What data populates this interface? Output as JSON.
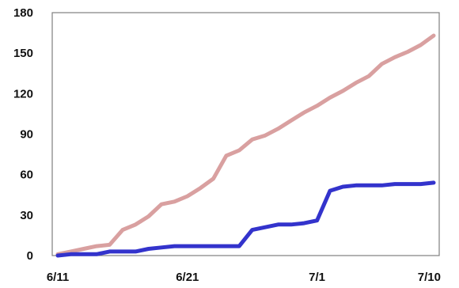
{
  "chart_data": {
    "type": "line",
    "title": "",
    "xlabel": "",
    "ylabel": "",
    "x_axis": {
      "type": "date",
      "range": [
        "6/11",
        "7/10"
      ],
      "tick_labels": [
        "6/11",
        "6/21",
        "7/1",
        "7/10"
      ]
    },
    "y_axis": {
      "range": [
        0,
        180
      ],
      "ticks": [
        0,
        30,
        60,
        90,
        120,
        150,
        180
      ],
      "tick_labels": [
        "0",
        "30",
        "60",
        "90",
        "120",
        "150",
        "180"
      ]
    },
    "grid": false,
    "legend": "none",
    "x": [
      "6/11",
      "6/12",
      "6/13",
      "6/14",
      "6/15",
      "6/16",
      "6/17",
      "6/18",
      "6/19",
      "6/20",
      "6/21",
      "6/22",
      "6/23",
      "6/24",
      "6/25",
      "6/26",
      "6/27",
      "6/28",
      "6/29",
      "6/30",
      "7/1",
      "7/2",
      "7/3",
      "7/4",
      "7/5",
      "7/6",
      "7/7",
      "7/8",
      "7/9",
      "7/10"
    ],
    "series": [
      {
        "color": "#d9a0a0",
        "values": [
          1,
          3,
          5,
          7,
          8,
          19,
          23,
          29,
          38,
          40,
          44,
          50,
          57,
          74,
          78,
          86,
          89,
          94,
          100,
          106,
          111,
          117,
          122,
          128,
          133,
          142,
          147,
          151,
          156,
          163
        ]
      },
      {
        "color": "#3333cc",
        "values": [
          0,
          1,
          1,
          1,
          3,
          3,
          3,
          5,
          6,
          7,
          7,
          7,
          7,
          7,
          7,
          19,
          21,
          23,
          23,
          24,
          26,
          48,
          51,
          52,
          52,
          52,
          53,
          53,
          53,
          54
        ]
      }
    ]
  }
}
